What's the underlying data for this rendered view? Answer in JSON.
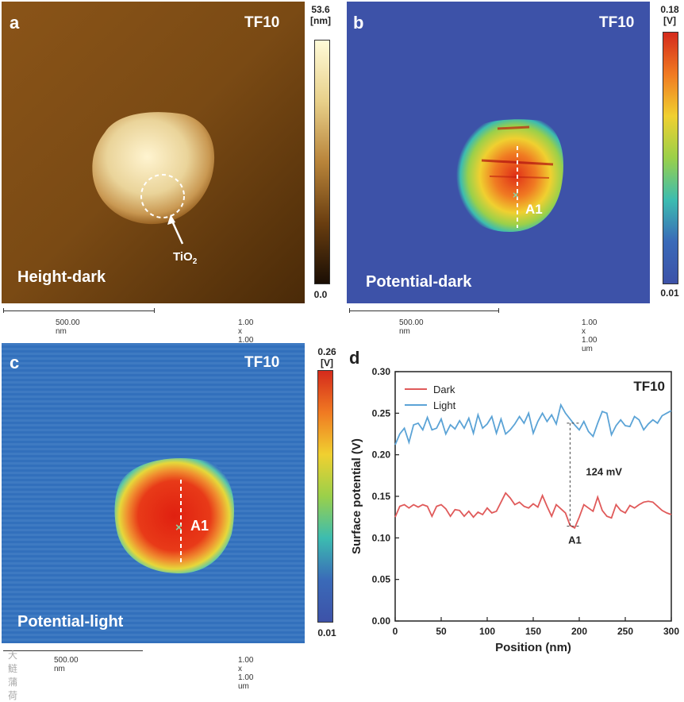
{
  "panels": {
    "a": {
      "letter": "a",
      "sample": "TF10",
      "label": "Height-dark",
      "annotation": "TiO",
      "annotation_sub": "2",
      "colorbar": {
        "max": "53.6",
        "unit": "[nm]",
        "min": "0.0"
      },
      "scalebar": "500.00 nm",
      "size": "1.00 x 1.00 um"
    },
    "b": {
      "letter": "b",
      "sample": "TF10",
      "label": "Potential-dark",
      "marker": "A1",
      "colorbar": {
        "max": "0.18",
        "unit": "[V]",
        "min": "0.01"
      },
      "scalebar": "500.00 nm",
      "size": "1.00 x 1.00 um"
    },
    "c": {
      "letter": "c",
      "sample": "TF10",
      "label": "Potential-light",
      "marker": "A1",
      "colorbar": {
        "max": "0.26",
        "unit": "[V]",
        "min": "0.01"
      },
      "scalebar": "500.00 nm",
      "size": "1.00 x 1.00 um"
    },
    "d": {
      "letter": "d"
    }
  },
  "watermark": "大鲢蒲荷",
  "chart_data": {
    "type": "line",
    "title": "TF10",
    "xlabel": "Position (nm)",
    "ylabel": "Surface potential (V)",
    "xlim": [
      0,
      300
    ],
    "ylim": [
      0,
      0.3
    ],
    "xticks": [
      "0",
      "50",
      "100",
      "150",
      "200",
      "250",
      "300"
    ],
    "yticks": [
      "0.00",
      "0.05",
      "0.10",
      "0.15",
      "0.20",
      "0.25",
      "0.30"
    ],
    "legend_position": "top-left",
    "annotations": {
      "delta": "124 mV",
      "point": "A1"
    },
    "colors": {
      "Dark": "#e05a5a",
      "Light": "#5ba3d6"
    },
    "series": [
      {
        "name": "Dark",
        "x": [
          0,
          5,
          10,
          15,
          20,
          25,
          30,
          35,
          40,
          45,
          50,
          55,
          60,
          65,
          70,
          75,
          80,
          85,
          90,
          95,
          100,
          105,
          110,
          115,
          120,
          125,
          130,
          135,
          140,
          145,
          150,
          155,
          160,
          165,
          170,
          175,
          180,
          185,
          190,
          195,
          200,
          205,
          210,
          215,
          220,
          225,
          230,
          235,
          240,
          245,
          250,
          255,
          260,
          265,
          270,
          275,
          280,
          285,
          290,
          295,
          300
        ],
        "values": [
          0.125,
          0.138,
          0.14,
          0.136,
          0.14,
          0.137,
          0.14,
          0.138,
          0.126,
          0.138,
          0.14,
          0.135,
          0.126,
          0.134,
          0.133,
          0.126,
          0.132,
          0.125,
          0.131,
          0.128,
          0.136,
          0.13,
          0.132,
          0.143,
          0.154,
          0.148,
          0.14,
          0.143,
          0.138,
          0.136,
          0.141,
          0.137,
          0.151,
          0.138,
          0.126,
          0.14,
          0.135,
          0.13,
          0.115,
          0.112,
          0.125,
          0.14,
          0.136,
          0.132,
          0.149,
          0.133,
          0.126,
          0.124,
          0.14,
          0.133,
          0.13,
          0.139,
          0.136,
          0.14,
          0.143,
          0.144,
          0.143,
          0.138,
          0.133,
          0.13,
          0.128
        ]
      },
      {
        "name": "Light",
        "x": [
          0,
          5,
          10,
          15,
          20,
          25,
          30,
          35,
          40,
          45,
          50,
          55,
          60,
          65,
          70,
          75,
          80,
          85,
          90,
          95,
          100,
          105,
          110,
          115,
          120,
          125,
          130,
          135,
          140,
          145,
          150,
          155,
          160,
          165,
          170,
          175,
          180,
          185,
          190,
          195,
          200,
          205,
          210,
          215,
          220,
          225,
          230,
          235,
          240,
          245,
          250,
          255,
          260,
          265,
          270,
          275,
          280,
          285,
          290,
          295,
          300
        ],
        "values": [
          0.212,
          0.225,
          0.232,
          0.215,
          0.236,
          0.238,
          0.23,
          0.245,
          0.23,
          0.232,
          0.243,
          0.225,
          0.236,
          0.231,
          0.241,
          0.232,
          0.244,
          0.226,
          0.248,
          0.232,
          0.237,
          0.246,
          0.226,
          0.243,
          0.225,
          0.23,
          0.237,
          0.246,
          0.238,
          0.25,
          0.226,
          0.24,
          0.25,
          0.24,
          0.248,
          0.237,
          0.26,
          0.25,
          0.243,
          0.236,
          0.23,
          0.24,
          0.228,
          0.222,
          0.238,
          0.252,
          0.25,
          0.224,
          0.235,
          0.242,
          0.235,
          0.234,
          0.246,
          0.242,
          0.23,
          0.237,
          0.242,
          0.238,
          0.247,
          0.25,
          0.253
        ]
      }
    ]
  }
}
